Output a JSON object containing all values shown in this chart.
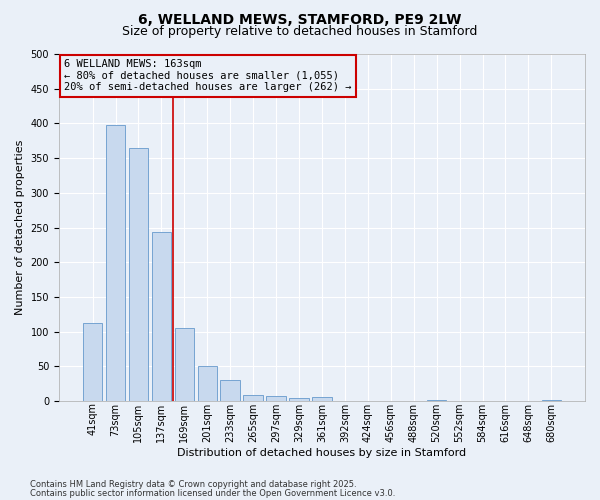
{
  "title": "6, WELLAND MEWS, STAMFORD, PE9 2LW",
  "subtitle": "Size of property relative to detached houses in Stamford",
  "xlabel": "Distribution of detached houses by size in Stamford",
  "ylabel": "Number of detached properties",
  "categories": [
    "41sqm",
    "73sqm",
    "105sqm",
    "137sqm",
    "169sqm",
    "201sqm",
    "233sqm",
    "265sqm",
    "297sqm",
    "329sqm",
    "361sqm",
    "392sqm",
    "424sqm",
    "456sqm",
    "488sqm",
    "520sqm",
    "552sqm",
    "584sqm",
    "616sqm",
    "648sqm",
    "680sqm"
  ],
  "values": [
    113,
    397,
    365,
    244,
    105,
    50,
    30,
    9,
    8,
    4,
    6,
    0,
    0,
    0,
    0,
    1,
    0,
    0,
    0,
    0,
    1
  ],
  "bar_color": "#c8d9ee",
  "bar_edge_color": "#6699cc",
  "ylim": [
    0,
    500
  ],
  "yticks": [
    0,
    50,
    100,
    150,
    200,
    250,
    300,
    350,
    400,
    450,
    500
  ],
  "vline_color": "#cc0000",
  "vline_pos": 3.5,
  "annotation_text": "6 WELLAND MEWS: 163sqm\n← 80% of detached houses are smaller (1,055)\n20% of semi-detached houses are larger (262) →",
  "ann_box_edge_color": "#cc0000",
  "background_color": "#eaf0f8",
  "grid_color": "#ffffff",
  "footnote_line1": "Contains HM Land Registry data © Crown copyright and database right 2025.",
  "footnote_line2": "Contains public sector information licensed under the Open Government Licence v3.0.",
  "title_fontsize": 10,
  "subtitle_fontsize": 9,
  "axis_label_fontsize": 8,
  "tick_fontsize": 7,
  "ann_fontsize": 7.5,
  "footnote_fontsize": 6
}
